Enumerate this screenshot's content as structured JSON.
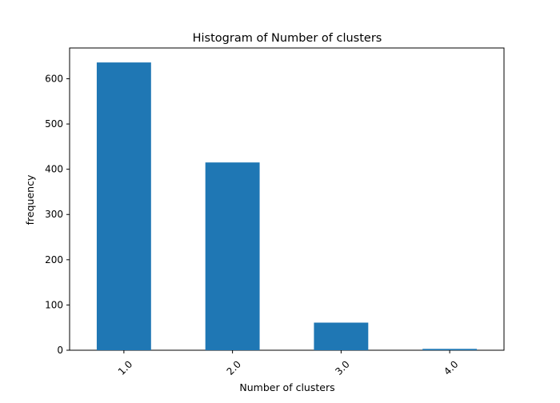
{
  "chart_data": {
    "type": "bar",
    "title": "Histogram of Number of clusters",
    "xlabel": "Number of clusters",
    "ylabel": "frequency",
    "categories": [
      "1.0",
      "2.0",
      "3.0",
      "4.0"
    ],
    "values": [
      636,
      415,
      61,
      3
    ],
    "ylim": [
      0,
      668
    ],
    "yticks": [
      0,
      100,
      200,
      300,
      400,
      500,
      600
    ],
    "bar_color": "#1f77b4",
    "grid": false,
    "legend": "none",
    "xtick_rotation_deg": 45
  }
}
